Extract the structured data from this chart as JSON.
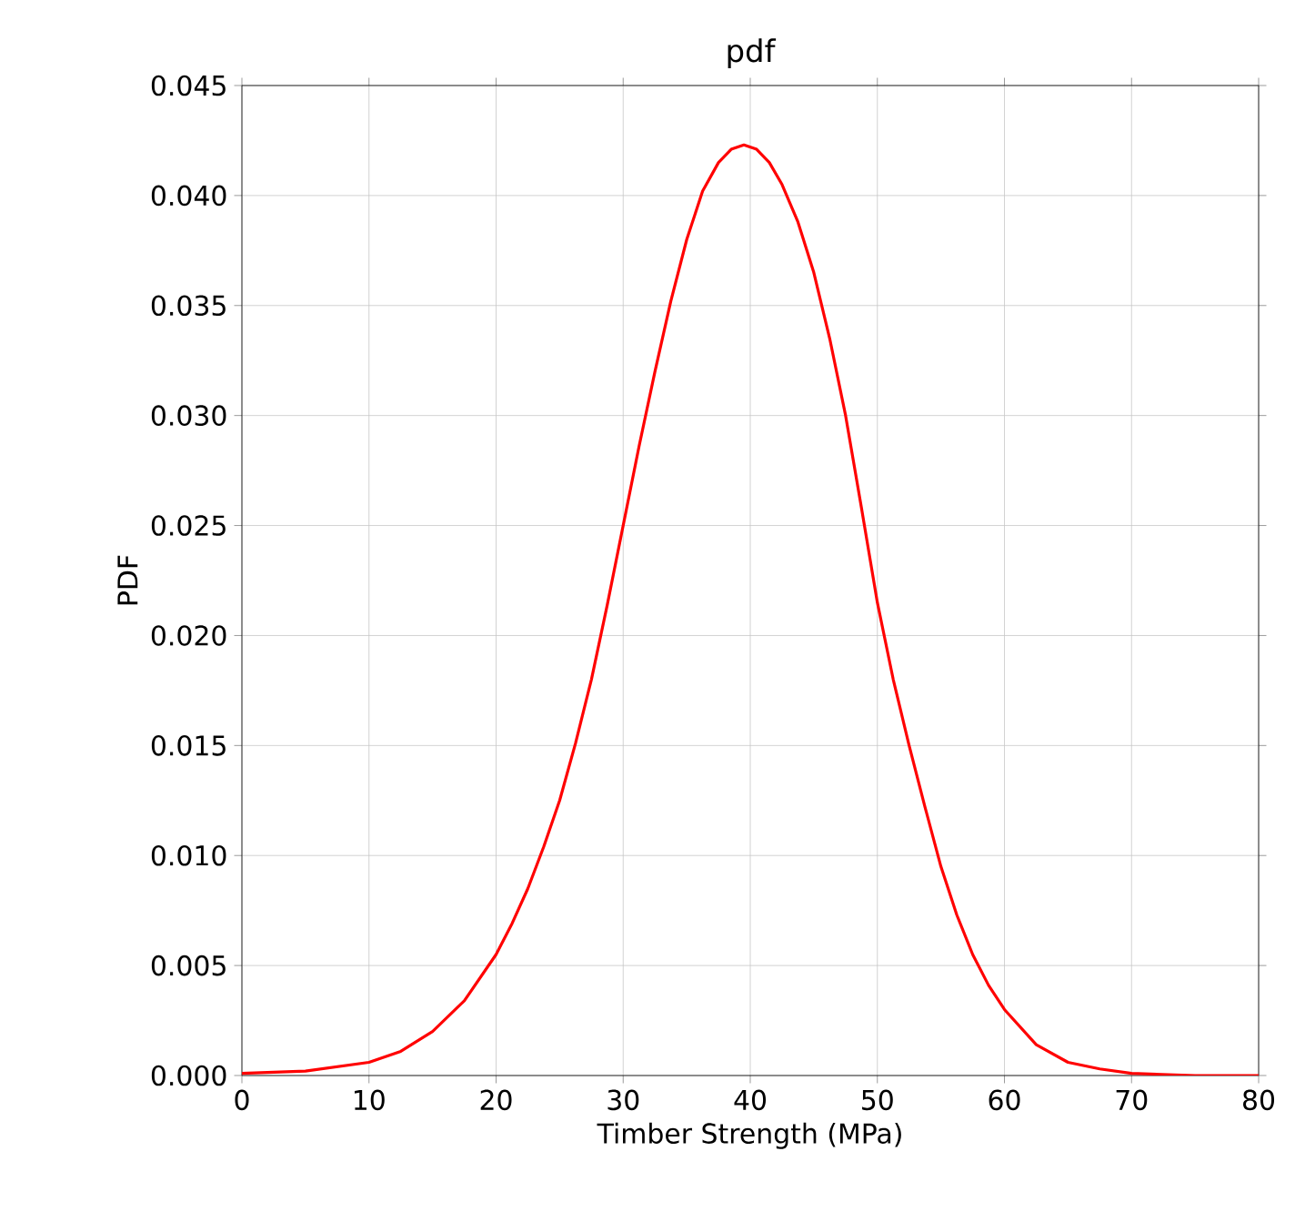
{
  "chart_data": {
    "type": "line",
    "title": "pdf",
    "xlabel": "Timber Strength (MPa)",
    "ylabel": "PDF",
    "x": [
      0,
      5,
      10,
      12.5,
      15,
      17.5,
      20,
      21.25,
      22.5,
      23.75,
      25,
      26.25,
      27.5,
      28.75,
      30,
      31.25,
      32.5,
      33.75,
      35,
      36.25,
      37.5,
      38.5,
      39.5,
      40.5,
      41.5,
      42.5,
      43.75,
      45,
      46.25,
      47.5,
      48.75,
      50,
      51.25,
      52.5,
      53.75,
      55,
      56.25,
      57.5,
      58.75,
      60,
      62.5,
      65,
      67.5,
      70,
      75,
      80
    ],
    "series": [
      {
        "color": "#ff0000",
        "values": [
          0.0001,
          0.0002,
          0.0006,
          0.0011,
          0.002,
          0.0034,
          0.0055,
          0.0069,
          0.0085,
          0.0104,
          0.0125,
          0.0151,
          0.018,
          0.0214,
          0.025,
          0.0286,
          0.032,
          0.0352,
          0.038,
          0.0402,
          0.0415,
          0.0421,
          0.0423,
          0.0421,
          0.0415,
          0.0405,
          0.0388,
          0.0365,
          0.0335,
          0.03,
          0.0258,
          0.0215,
          0.018,
          0.015,
          0.0122,
          0.0095,
          0.0073,
          0.0055,
          0.0041,
          0.003,
          0.0014,
          0.0006,
          0.0003,
          0.0001,
          0.0,
          0.0
        ]
      }
    ],
    "xlim": [
      0,
      80
    ],
    "ylim": [
      0,
      0.045
    ],
    "xticks": [
      0,
      10,
      20,
      30,
      40,
      50,
      60,
      70,
      80
    ],
    "yticks": [
      {
        "value": 0,
        "label": "0.000"
      },
      {
        "value": 0.005,
        "label": "0.005"
      },
      {
        "value": 0.01,
        "label": "0.010"
      },
      {
        "value": 0.015,
        "label": "0.015"
      },
      {
        "value": 0.02,
        "label": "0.020"
      },
      {
        "value": 0.025,
        "label": "0.025"
      },
      {
        "value": 0.03,
        "label": "0.030"
      },
      {
        "value": 0.035,
        "label": "0.035"
      },
      {
        "value": 0.04,
        "label": "0.040"
      },
      {
        "value": 0.045,
        "label": "0.045"
      }
    ],
    "grid": true,
    "marker": "none",
    "line_style": "solid"
  }
}
